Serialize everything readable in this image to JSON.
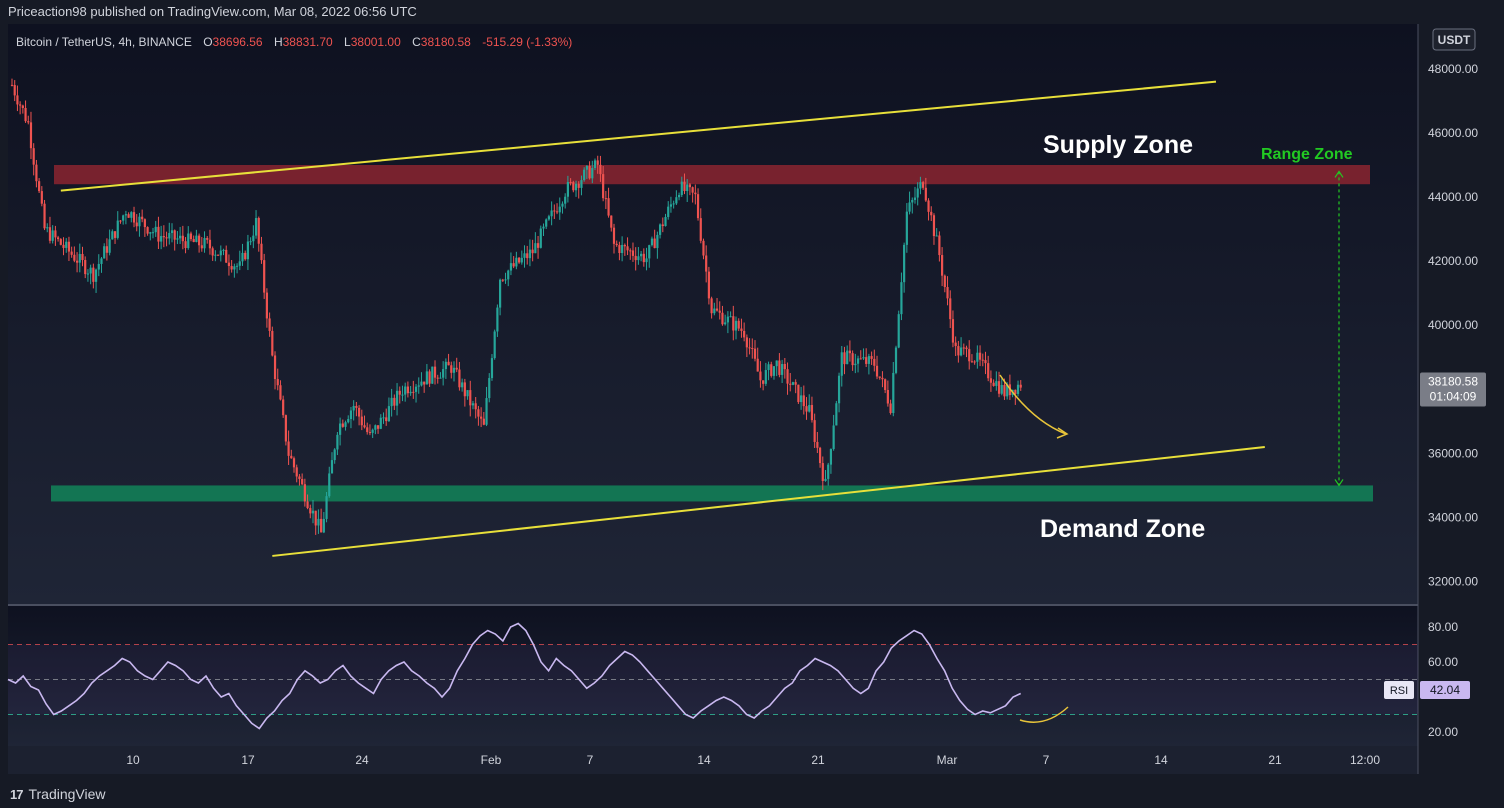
{
  "header": {
    "publisher_text": "Priceaction98 published on TradingView.com, Mar 08, 2022 06:56 UTC"
  },
  "legend": {
    "symbol": "Bitcoin / TetherUS, 4h, BINANCE",
    "open_label": "O",
    "open": "38696.56",
    "high_label": "H",
    "high": "38831.70",
    "low_label": "L",
    "low": "38001.00",
    "close_label": "C",
    "close": "38180.58",
    "change": "-515.29 (-1.33%)"
  },
  "currency_button": "USDT",
  "price_tag": {
    "price": "38180.58",
    "countdown": "01:04:09"
  },
  "rsi_tag": {
    "label": "RSI",
    "value": "42.04"
  },
  "annotations": {
    "supply": "Supply Zone",
    "demand": "Demand Zone",
    "range": "Range Zone"
  },
  "footer": {
    "brand": "TradingView",
    "logo_glyph": "17"
  },
  "colors": {
    "up": "#26a69a",
    "down": "#ef5350",
    "trendline": "#e8e03a",
    "supply_band": "#8b2430",
    "demand_band": "#137a55",
    "range": "#22c922",
    "rsi_line": "#c9b8f0"
  },
  "chart_data": [
    {
      "type": "candlestick",
      "title": "",
      "y_ticks": [
        "48000.00",
        "46000.00",
        "44000.00",
        "42000.00",
        "40000.00",
        "36000.00",
        "34000.00",
        "32000.00"
      ],
      "x_ticks": [
        "10",
        "17",
        "24",
        "Feb",
        "7",
        "14",
        "21",
        "Mar",
        "7",
        "14",
        "21",
        "12:00"
      ],
      "ylim": [
        31300,
        49400
      ],
      "key_points": [
        {
          "date": "Jan 05",
          "price": 47500
        },
        {
          "date": "Jan 06",
          "price": 46300
        },
        {
          "date": "Jan 07",
          "price": 43000
        },
        {
          "date": "Jan 10",
          "price": 41600
        },
        {
          "date": "Jan 12",
          "price": 43600
        },
        {
          "date": "Jan 14",
          "price": 42800
        },
        {
          "date": "Jan 17",
          "price": 42500
        },
        {
          "date": "Jan 19",
          "price": 41800
        },
        {
          "date": "Jan 20",
          "price": 43200
        },
        {
          "date": "Jan 21",
          "price": 39000
        },
        {
          "date": "Jan 22",
          "price": 36000
        },
        {
          "date": "Jan 24",
          "price": 33500
        },
        {
          "date": "Jan 25",
          "price": 36800
        },
        {
          "date": "Jan 26",
          "price": 37500
        },
        {
          "date": "Jan 27",
          "price": 36500
        },
        {
          "date": "Jan 29",
          "price": 38000
        },
        {
          "date": "Jan 31",
          "price": 38500
        },
        {
          "date": "Feb 01",
          "price": 38700
        },
        {
          "date": "Feb 03",
          "price": 36800
        },
        {
          "date": "Feb 04",
          "price": 41500
        },
        {
          "date": "Feb 06",
          "price": 42300
        },
        {
          "date": "Feb 08",
          "price": 44200
        },
        {
          "date": "Feb 10",
          "price": 45000
        },
        {
          "date": "Feb 11",
          "price": 42500
        },
        {
          "date": "Feb 13",
          "price": 42100
        },
        {
          "date": "Feb 15",
          "price": 44300
        },
        {
          "date": "Feb 16",
          "price": 44000
        },
        {
          "date": "Feb 17",
          "price": 40500
        },
        {
          "date": "Feb 19",
          "price": 39800
        },
        {
          "date": "Feb 20",
          "price": 38300
        },
        {
          "date": "Feb 21",
          "price": 38800
        },
        {
          "date": "Feb 23",
          "price": 37300
        },
        {
          "date": "Feb 24",
          "price": 35000
        },
        {
          "date": "Feb 25",
          "price": 39000
        },
        {
          "date": "Feb 27",
          "price": 38800
        },
        {
          "date": "Feb 28",
          "price": 37500
        },
        {
          "date": "Mar 01",
          "price": 43500
        },
        {
          "date": "Mar 02",
          "price": 44500
        },
        {
          "date": "Mar 03",
          "price": 42200
        },
        {
          "date": "Mar 04",
          "price": 39200
        },
        {
          "date": "Mar 05",
          "price": 39100
        },
        {
          "date": "Mar 06",
          "price": 38500
        },
        {
          "date": "Mar 07",
          "price": 37900
        },
        {
          "date": "Mar 08",
          "price": 38180
        }
      ],
      "zones": [
        {
          "name": "Supply Zone",
          "from": 44400,
          "to": 45000
        },
        {
          "name": "Demand Zone",
          "from": 34500,
          "to": 35000
        }
      ],
      "trendlines": [
        {
          "from": {
            "date": "Jan 08",
            "price": 44200
          },
          "to": {
            "date": "Mar 20",
            "price": 47600
          }
        },
        {
          "from": {
            "date": "Jan 21",
            "price": 32800
          },
          "to": {
            "date": "Mar 23",
            "price": 36200
          }
        }
      ],
      "range_zone": {
        "from": 35000,
        "to": 44800
      }
    },
    {
      "type": "line",
      "title": "",
      "series": [
        {
          "name": "RSI",
          "values": [
            50,
            48,
            52,
            46,
            44,
            36,
            30,
            32,
            35,
            38,
            42,
            48,
            52,
            55,
            58,
            62,
            60,
            55,
            52,
            50,
            55,
            60,
            58,
            55,
            50,
            48,
            52,
            45,
            40,
            42,
            35,
            30,
            25,
            22,
            28,
            32,
            38,
            42,
            50,
            55,
            52,
            48,
            50,
            55,
            58,
            52,
            48,
            45,
            42,
            50,
            55,
            58,
            60,
            55,
            52,
            48,
            45,
            40,
            45,
            55,
            62,
            70,
            75,
            78,
            76,
            72,
            80,
            82,
            78,
            70,
            60,
            55,
            62,
            58,
            55,
            50,
            45,
            48,
            52,
            58,
            62,
            66,
            64,
            60,
            55,
            50,
            45,
            40,
            35,
            30,
            28,
            32,
            35,
            38,
            40,
            38,
            35,
            30,
            28,
            32,
            35,
            40,
            45,
            48,
            55,
            58,
            62,
            60,
            58,
            55,
            50,
            45,
            42,
            45,
            55,
            60,
            68,
            72,
            75,
            78,
            76,
            70,
            62,
            55,
            45,
            38,
            33,
            30,
            32,
            31,
            33,
            35,
            40,
            42
          ]
        }
      ],
      "y_ticks": [
        "80.00",
        "60.00",
        "20.00"
      ],
      "ylim": [
        12,
        92
      ],
      "levels": [
        70,
        50,
        30
      ]
    }
  ]
}
